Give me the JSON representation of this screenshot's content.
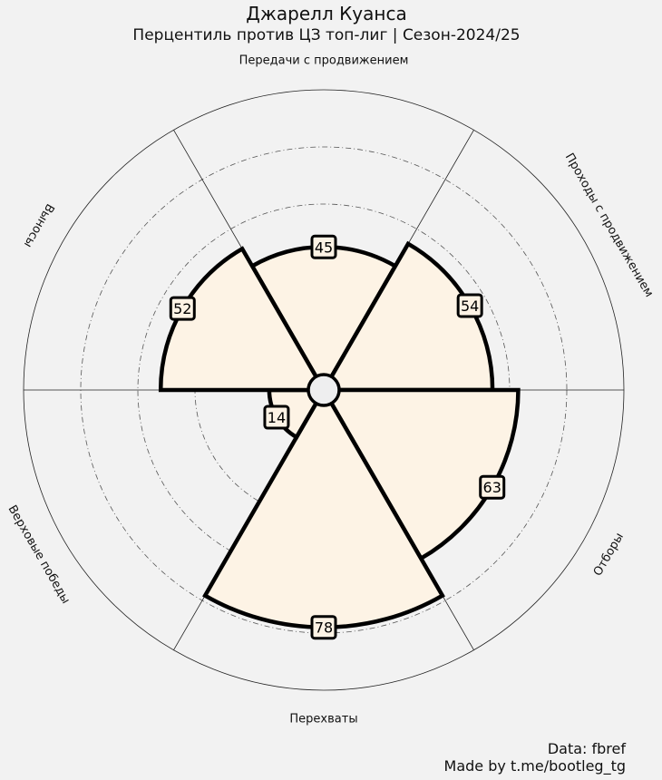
{
  "chart_data": {
    "type": "pie",
    "subtype": "polar-bar (pizza)",
    "title": "Джарелл Куанса",
    "subtitle": "Перцентиль против ЦЗ топ-лиг | Сезон-2024/25",
    "categories": [
      "Передачи с продвижением",
      "Проходы с продвижением",
      "Отборы",
      "Перехваты",
      "Верховые победы",
      "Выносы"
    ],
    "values": [
      45,
      54,
      63,
      78,
      14,
      52
    ],
    "rlim": [
      0,
      100
    ],
    "grid_values": [
      40,
      60,
      80
    ],
    "grid": true,
    "colors": {
      "background": "#f2f2f2",
      "slice_fill": "#fdf3e5",
      "slice_edge": "#000000",
      "center": "#f2f2f2"
    }
  },
  "footer": {
    "source": "Data: fbref",
    "credit": "Made by t.me/bootleg_tg"
  }
}
